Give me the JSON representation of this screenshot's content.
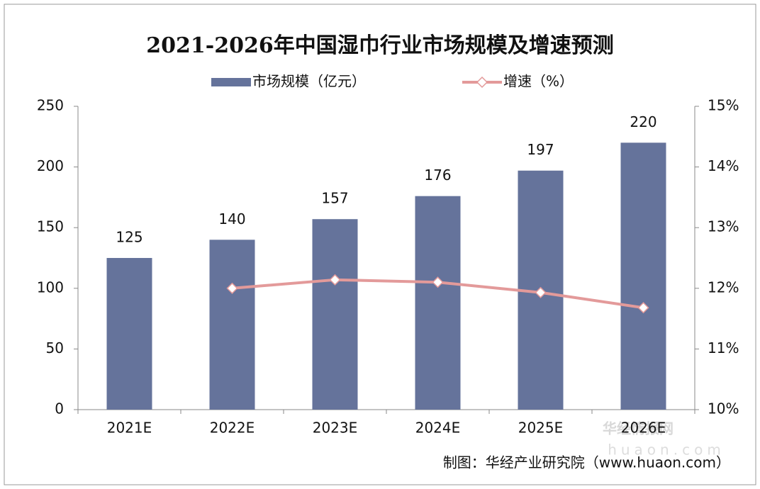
{
  "chart_data": {
    "type": "bar",
    "title": "2021-2026年中国湿巾行业市场规模及增速预测",
    "categories": [
      "2021E",
      "2022E",
      "2023E",
      "2024E",
      "2025E",
      "2026E"
    ],
    "series": [
      {
        "name": "市场规模（亿元）",
        "type": "bar",
        "color": "#65739b",
        "values": [
          125,
          140,
          157,
          176,
          197,
          220
        ]
      },
      {
        "name": "增速（%）",
        "type": "line",
        "axis": "y2",
        "color": "#e39a9a",
        "values": [
          null,
          12.0,
          12.14,
          12.1,
          11.93,
          11.68
        ]
      }
    ],
    "ylim": [
      0,
      250
    ],
    "yticks": [
      0,
      50,
      100,
      150,
      200,
      250
    ],
    "y2lim": [
      10,
      15
    ],
    "y2ticks": [
      {
        "value": 10,
        "label": "10%"
      },
      {
        "value": 11,
        "label": "11%"
      },
      {
        "value": 12,
        "label": "12%"
      },
      {
        "value": 13,
        "label": "13%"
      },
      {
        "value": 14,
        "label": "14%"
      },
      {
        "value": 15,
        "label": "15%"
      }
    ],
    "source": "制图：华经产业研究院（www.huaon.com）",
    "watermark": "华经情报网",
    "watermark_url": "huaon.com"
  }
}
